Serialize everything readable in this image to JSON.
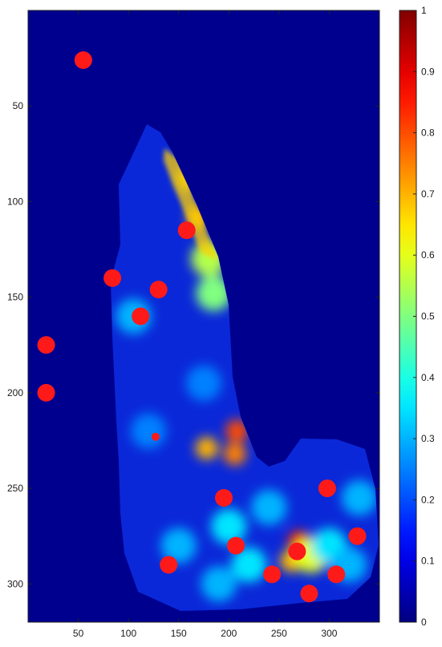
{
  "chart_data": {
    "type": "heatmap",
    "title": "",
    "xlabel": "",
    "ylabel": "",
    "xlim": [
      0,
      350
    ],
    "ylim": [
      0,
      320
    ],
    "y_reversed": true,
    "x_ticks": [
      50,
      100,
      150,
      200,
      250,
      300
    ],
    "y_ticks": [
      50,
      100,
      150,
      200,
      250,
      300
    ],
    "colorbar": {
      "colormap": "jet",
      "range": [
        0,
        1
      ],
      "ticks": [
        0,
        0.1,
        0.2,
        0.3,
        0.4,
        0.5,
        0.6,
        0.7,
        0.8,
        0.9,
        1
      ]
    },
    "background_color": "#00008f",
    "marker_color": "#ff1a1a",
    "markers": [
      {
        "x": 55,
        "y": 26
      },
      {
        "x": 158,
        "y": 115
      },
      {
        "x": 84,
        "y": 140
      },
      {
        "x": 130,
        "y": 146
      },
      {
        "x": 112,
        "y": 160
      },
      {
        "x": 18,
        "y": 175
      },
      {
        "x": 18,
        "y": 200
      },
      {
        "x": 195,
        "y": 255
      },
      {
        "x": 298,
        "y": 250
      },
      {
        "x": 207,
        "y": 280
      },
      {
        "x": 268,
        "y": 283
      },
      {
        "x": 328,
        "y": 275
      },
      {
        "x": 140,
        "y": 290
      },
      {
        "x": 243,
        "y": 295
      },
      {
        "x": 307,
        "y": 295
      },
      {
        "x": 280,
        "y": 305
      },
      {
        "x": 127,
        "y": 223,
        "small": true
      }
    ],
    "hotspots": [
      {
        "x": 160,
        "y": 88,
        "v": 0.65
      },
      {
        "x": 170,
        "y": 108,
        "v": 0.7
      },
      {
        "x": 180,
        "y": 130,
        "v": 0.55
      },
      {
        "x": 185,
        "y": 148,
        "v": 0.5
      },
      {
        "x": 208,
        "y": 220,
        "v": 0.8
      },
      {
        "x": 206,
        "y": 232,
        "v": 0.75
      },
      {
        "x": 178,
        "y": 229,
        "v": 0.7
      },
      {
        "x": 270,
        "y": 278,
        "v": 0.85
      },
      {
        "x": 262,
        "y": 288,
        "v": 0.7
      },
      {
        "x": 282,
        "y": 285,
        "v": 0.6
      },
      {
        "x": 200,
        "y": 270,
        "v": 0.35
      },
      {
        "x": 220,
        "y": 290,
        "v": 0.35
      },
      {
        "x": 300,
        "y": 280,
        "v": 0.35
      },
      {
        "x": 320,
        "y": 290,
        "v": 0.3
      },
      {
        "x": 240,
        "y": 260,
        "v": 0.3
      },
      {
        "x": 150,
        "y": 280,
        "v": 0.3
      },
      {
        "x": 105,
        "y": 160,
        "v": 0.3
      },
      {
        "x": 120,
        "y": 220,
        "v": 0.25
      },
      {
        "x": 330,
        "y": 255,
        "v": 0.3
      },
      {
        "x": 175,
        "y": 195,
        "v": 0.25
      },
      {
        "x": 190,
        "y": 300,
        "v": 0.3
      }
    ]
  }
}
